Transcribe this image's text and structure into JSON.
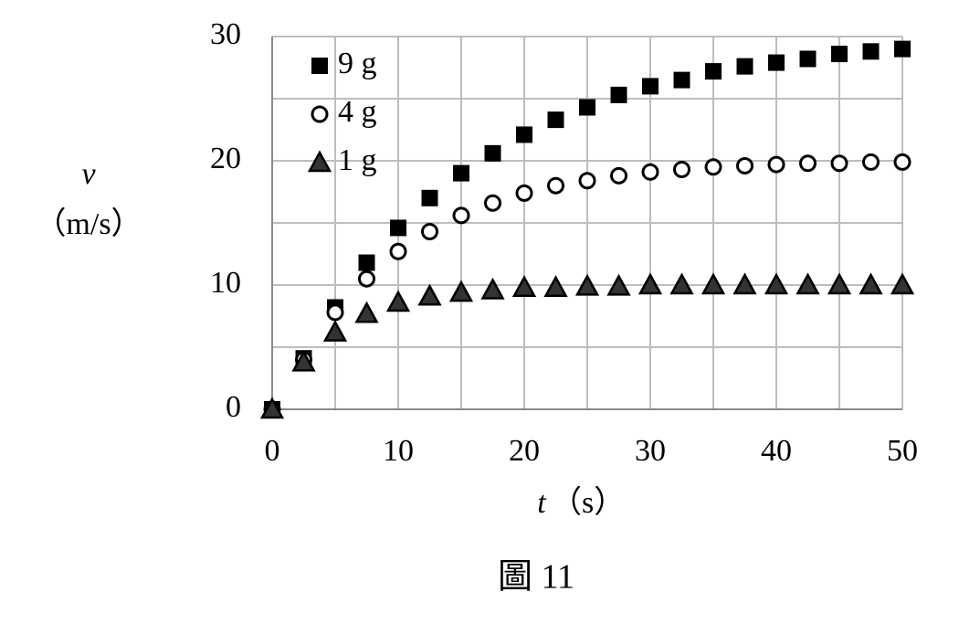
{
  "chart_data": {
    "type": "scatter",
    "caption": "圖 11",
    "y_label_symbol": "v",
    "y_label_unit": "（m/s）",
    "x_label_symbol": "t",
    "x_label_unit": "（s）",
    "x": [
      0,
      2.5,
      5,
      7.5,
      10,
      12.5,
      15,
      17.5,
      20,
      22.5,
      25,
      27.5,
      30,
      32.5,
      35,
      37.5,
      40,
      42.5,
      45,
      47.5,
      50
    ],
    "series": [
      {
        "name": "9 g",
        "marker": "square",
        "color": "#000000",
        "values": [
          0,
          4.1,
          8.2,
          11.8,
          14.6,
          17.0,
          19.0,
          20.6,
          22.1,
          23.3,
          24.3,
          25.3,
          26.0,
          26.5,
          27.2,
          27.6,
          27.9,
          28.2,
          28.6,
          28.8,
          29.0
        ]
      },
      {
        "name": "4 g",
        "marker": "circle",
        "color": "#000000",
        "values": [
          0,
          4.0,
          7.8,
          10.5,
          12.7,
          14.3,
          15.6,
          16.6,
          17.4,
          18.0,
          18.4,
          18.8,
          19.1,
          19.3,
          19.5,
          19.6,
          19.7,
          19.8,
          19.8,
          19.9,
          19.9
        ]
      },
      {
        "name": "1 g",
        "marker": "triangle",
        "color": "#333333",
        "values": [
          0,
          3.8,
          6.2,
          7.7,
          8.6,
          9.1,
          9.4,
          9.6,
          9.8,
          9.8,
          9.9,
          9.9,
          10,
          10,
          10,
          10,
          10,
          10,
          10,
          10,
          10
        ]
      }
    ],
    "xlim": [
      0,
      50
    ],
    "xticks": [
      0,
      10,
      20,
      30,
      40,
      50
    ],
    "x_minor_grid": [
      5,
      15,
      25,
      35,
      45
    ],
    "ylim": [
      0,
      30
    ],
    "yticks": [
      0,
      10,
      20,
      30
    ],
    "y_minor_grid": [
      5,
      15,
      25
    ],
    "grid": true,
    "legend": "upper left"
  }
}
